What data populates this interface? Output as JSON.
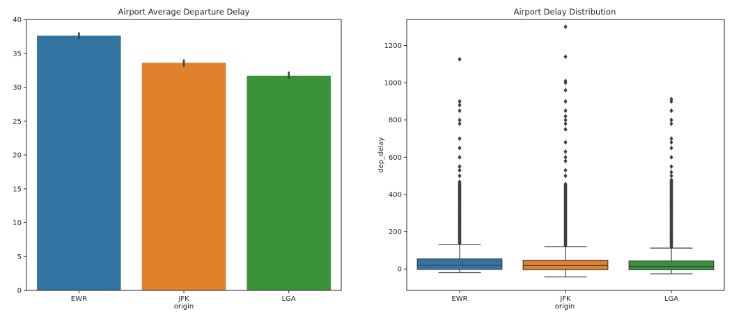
{
  "chart_data": [
    {
      "type": "bar",
      "title": "Airport Average Departure Delay",
      "xlabel": "origin",
      "ylabel": "",
      "categories": [
        "EWR",
        "JFK",
        "LGA"
      ],
      "values": [
        37.6,
        33.6,
        31.7
      ],
      "errors": [
        [
          37.1,
          38.1
        ],
        [
          33.0,
          34.1
        ],
        [
          31.2,
          32.3
        ]
      ],
      "ylim": [
        0,
        40
      ],
      "yticks": [
        0,
        5,
        10,
        15,
        20,
        25,
        30,
        35,
        40
      ],
      "colors": [
        "#3274a1",
        "#e1812c",
        "#3a923a"
      ],
      "grid": false
    },
    {
      "type": "box",
      "title": "Airport Delay Distribution",
      "xlabel": "origin",
      "ylabel": "dep_delay",
      "categories": [
        "EWR",
        "JFK",
        "LGA"
      ],
      "ylim": [
        -115,
        1340
      ],
      "yticks": [
        0,
        200,
        400,
        600,
        800,
        1000,
        1200
      ],
      "colors": [
        "#3274a1",
        "#e1812c",
        "#3a923a"
      ],
      "boxes": [
        {
          "whisker_low": -20,
          "q1": -2,
          "median": 20,
          "q3": 54,
          "whisker_high": 132,
          "outliers_dense_to": 470,
          "outliers": [
            500,
            530,
            550,
            600,
            650,
            700,
            780,
            800,
            850,
            880,
            900,
            1126
          ]
        },
        {
          "whisker_low": -43,
          "q1": -4,
          "median": 18,
          "q3": 47,
          "whisker_high": 120,
          "outliers_dense_to": 460,
          "outliers": [
            500,
            530,
            580,
            600,
            630,
            680,
            750,
            780,
            800,
            820,
            850,
            900,
            960,
            1000,
            1010,
            1140,
            1301
          ]
        },
        {
          "whisker_low": -26,
          "q1": -4,
          "median": 13,
          "q3": 43,
          "whisker_high": 112,
          "outliers_dense_to": 480,
          "outliers": [
            500,
            520,
            550,
            600,
            650,
            680,
            700,
            780,
            800,
            850,
            900,
            912
          ]
        }
      ],
      "grid": false
    }
  ]
}
